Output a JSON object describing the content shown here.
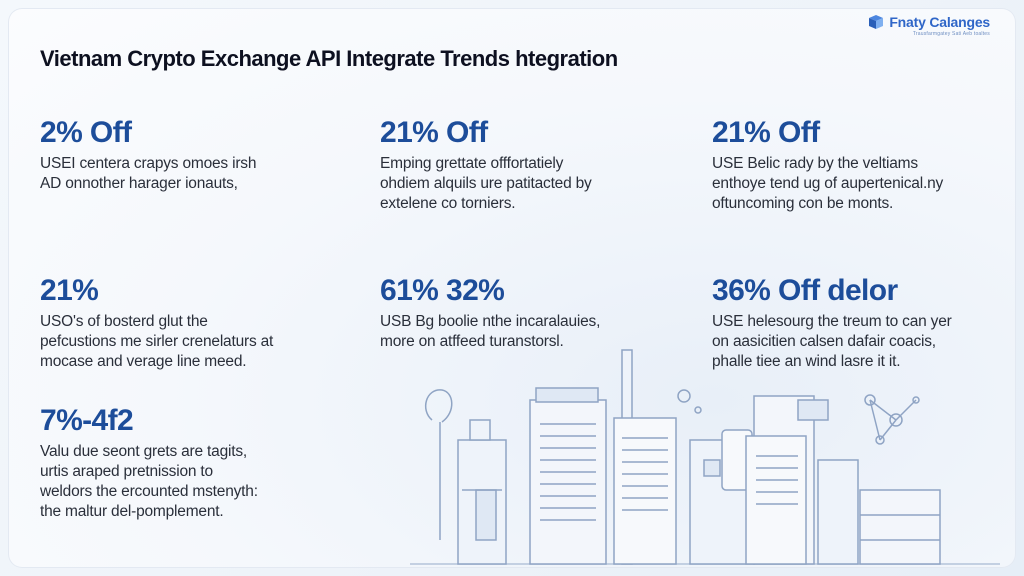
{
  "header": {
    "title": "Vietnam Crypto Exchange API Integrate  Trends htegration",
    "logo_name": "Fnaty Calanges",
    "logo_tagline": "Trausfarmgatey Sati Aeb toaltes",
    "logo_icon": "cube-logo-icon"
  },
  "stats": [
    {
      "value": "2% Off",
      "lines": [
        "USEI centera crapys omoes irsh",
        "AD onnother harager ionauts,"
      ]
    },
    {
      "value": "21% Off",
      "lines": [
        "Emping grettate offfortatiely",
        "ohdiem alquils ure patitacted by",
        "extelene co torniers."
      ]
    },
    {
      "value": "21% Off",
      "lines": [
        "USE Belic rady by the veltiams",
        "enthoye tend ug of aupertenical.ny",
        "oftuncoming con be monts."
      ]
    },
    {
      "value": "21%",
      "lines": [
        "USO's of bosterd glut the",
        "pefcustions me sirler crenelaturs at",
        "mocase and verage line meed."
      ]
    },
    {
      "value": "61% 32%",
      "lines": [
        "USB Bg boolie nthe incaralauies,",
        "more on atffeed turanstorsl."
      ]
    },
    {
      "value": "36% Off delor",
      "lines": [
        "USE helesourg the treum to can yer",
        "on aasicitien calsen dafair coacis,",
        "phalle tiee an wind lasre it it."
      ]
    },
    {
      "value": "7%-4f2",
      "lines": [
        "Valu due seont grets are tagits,",
        "urtis araped pretnission to",
        "weldors the ercounted mstenyth:",
        "the maltur del-pomplement."
      ]
    }
  ],
  "colors": {
    "accent": "#1d4d9a",
    "logo": "#2f66c8",
    "illustration_stroke": "#8fa4c4",
    "illustration_fill": "#dfe8f4"
  },
  "illustration": {
    "icon": "city-documents-illustration"
  }
}
